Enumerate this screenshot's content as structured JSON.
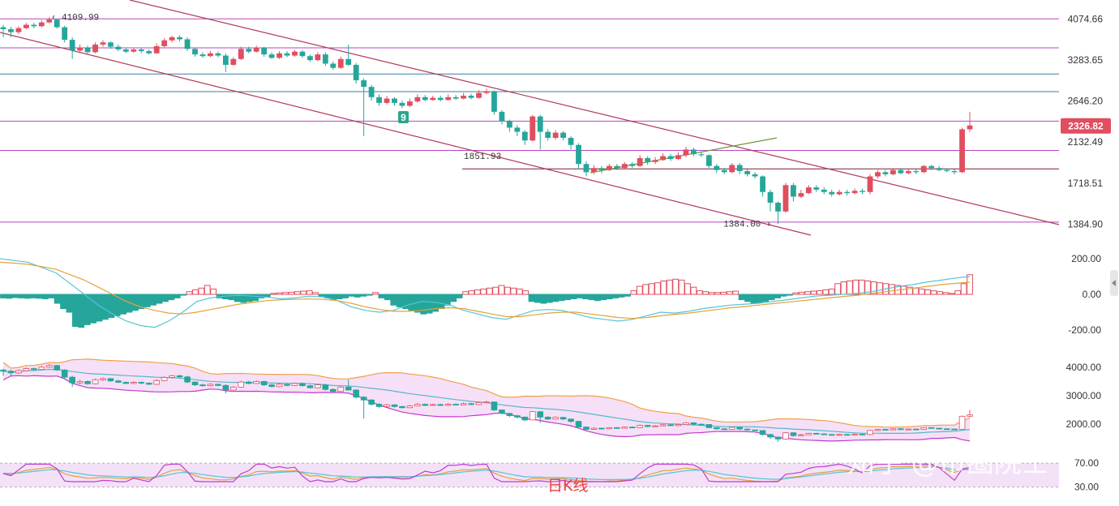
{
  "colors": {
    "up": "#e04e5f",
    "down": "#26a69a",
    "hline_purple": "#b845c4",
    "hline_teal": "#3e7f98",
    "channel": "#b03a5a",
    "trend_green": "#6b9a3a",
    "macd_fast": "#56c4d6",
    "macd_slow": "#e3a23c",
    "boll_upper": "#f0a04a",
    "boll_mid": "#56b8c8",
    "boll_lower": "#c23ad0",
    "boll_fill": "#f6e0f7",
    "tag_bg": "#e04e5f"
  },
  "chart_data": [
    {
      "type": "candlestick",
      "title": "",
      "y_ticks": [
        "4074.66",
        "3283.65",
        "2646.20",
        "2132.49",
        "1718.51",
        "1384.90"
      ],
      "y_scale": "log",
      "ylim": [
        1200,
        4500
      ],
      "current_price": "2326.82",
      "annotations": {
        "high_label": "4109.99",
        "low_label": "1384.00",
        "level_label": "1851.93",
        "marker": "9"
      },
      "horizontal_levels": [
        {
          "value": 4074.66,
          "color": "purple"
        },
        {
          "value": 3500,
          "color": "purple"
        },
        {
          "value": 3050,
          "color": "teal"
        },
        {
          "value": 2780,
          "color": "teal"
        },
        {
          "value": 2380,
          "color": "purple"
        },
        {
          "value": 2040,
          "color": "purple"
        },
        {
          "value": 1851.93,
          "color": "dark-red"
        },
        {
          "value": 1400,
          "color": "purple"
        }
      ],
      "candles": [
        [
          3900,
          3860,
          3950,
          3700
        ],
        [
          3860,
          3800,
          3910,
          3700
        ],
        [
          3800,
          3880,
          3920,
          3760
        ],
        [
          3880,
          3950,
          3990,
          3860
        ],
        [
          3950,
          3920,
          3990,
          3880
        ],
        [
          3920,
          4000,
          4050,
          3900
        ],
        [
          4000,
          4060,
          4109.99,
          3980
        ],
        [
          4060,
          3900,
          4080,
          3870
        ],
        [
          3900,
          3650,
          3930,
          3600
        ],
        [
          3650,
          3450,
          3700,
          3300
        ],
        [
          3450,
          3500,
          3560,
          3400
        ],
        [
          3500,
          3420,
          3540,
          3380
        ],
        [
          3420,
          3560,
          3600,
          3400
        ],
        [
          3560,
          3600,
          3640,
          3520
        ],
        [
          3600,
          3520,
          3620,
          3480
        ],
        [
          3520,
          3470,
          3560,
          3440
        ],
        [
          3470,
          3430,
          3500,
          3400
        ],
        [
          3430,
          3470,
          3510,
          3410
        ],
        [
          3470,
          3440,
          3500,
          3400
        ],
        [
          3440,
          3400,
          3470,
          3380
        ],
        [
          3400,
          3530,
          3580,
          3390
        ],
        [
          3530,
          3640,
          3680,
          3510
        ],
        [
          3640,
          3700,
          3730,
          3600
        ],
        [
          3700,
          3660,
          3740,
          3620
        ],
        [
          3660,
          3480,
          3700,
          3440
        ],
        [
          3480,
          3380,
          3500,
          3340
        ],
        [
          3380,
          3350,
          3420,
          3320
        ],
        [
          3350,
          3400,
          3440,
          3330
        ],
        [
          3400,
          3360,
          3430,
          3330
        ],
        [
          3360,
          3200,
          3400,
          3080
        ],
        [
          3200,
          3300,
          3330,
          3180
        ],
        [
          3300,
          3480,
          3520,
          3280
        ],
        [
          3480,
          3430,
          3520,
          3400
        ],
        [
          3430,
          3500,
          3540,
          3410
        ],
        [
          3500,
          3380,
          3520,
          3340
        ],
        [
          3380,
          3320,
          3420,
          3300
        ],
        [
          3320,
          3400,
          3440,
          3300
        ],
        [
          3400,
          3360,
          3440,
          3330
        ],
        [
          3360,
          3430,
          3460,
          3340
        ],
        [
          3430,
          3350,
          3460,
          3320
        ],
        [
          3350,
          3280,
          3380,
          3250
        ],
        [
          3280,
          3380,
          3420,
          3260
        ],
        [
          3380,
          3220,
          3420,
          3180
        ],
        [
          3220,
          3150,
          3260,
          3120
        ],
        [
          3150,
          3300,
          3340,
          3130
        ],
        [
          3300,
          3200,
          3560,
          3180
        ],
        [
          3200,
          2950,
          3230,
          2900
        ],
        [
          2950,
          2850,
          2980,
          2200
        ],
        [
          2850,
          2700,
          2880,
          2650
        ],
        [
          2700,
          2620,
          2740,
          2580
        ],
        [
          2620,
          2680,
          2720,
          2600
        ],
        [
          2680,
          2620,
          2700,
          2580
        ],
        [
          2620,
          2580,
          2650,
          2550
        ],
        [
          2580,
          2640,
          2680,
          2560
        ],
        [
          2640,
          2700,
          2740,
          2620
        ],
        [
          2700,
          2660,
          2730,
          2640
        ],
        [
          2660,
          2690,
          2720,
          2650
        ],
        [
          2690,
          2660,
          2720,
          2640
        ],
        [
          2660,
          2700,
          2740,
          2650
        ],
        [
          2700,
          2680,
          2730,
          2660
        ],
        [
          2680,
          2720,
          2760,
          2670
        ],
        [
          2720,
          2690,
          2750,
          2670
        ],
        [
          2690,
          2760,
          2800,
          2680
        ],
        [
          2760,
          2780,
          2820,
          2740
        ],
        [
          2780,
          2500,
          2800,
          2460
        ],
        [
          2500,
          2380,
          2520,
          2340
        ],
        [
          2380,
          2300,
          2400,
          2250
        ],
        [
          2300,
          2250,
          2330,
          2200
        ],
        [
          2250,
          2150,
          2270,
          2100
        ],
        [
          2150,
          2440,
          2460,
          2140
        ],
        [
          2440,
          2250,
          2460,
          2050
        ],
        [
          2250,
          2180,
          2280,
          2150
        ],
        [
          2180,
          2240,
          2270,
          2160
        ],
        [
          2240,
          2180,
          2260,
          2150
        ],
        [
          2180,
          2100,
          2200,
          2050
        ],
        [
          2100,
          1900,
          2120,
          1850
        ],
        [
          1900,
          1820,
          1930,
          1780
        ],
        [
          1820,
          1860,
          1890,
          1800
        ],
        [
          1860,
          1840,
          1880,
          1810
        ],
        [
          1840,
          1880,
          1900,
          1830
        ],
        [
          1880,
          1860,
          1900,
          1840
        ],
        [
          1860,
          1900,
          1920,
          1850
        ],
        [
          1900,
          1880,
          1920,
          1860
        ],
        [
          1880,
          1960,
          1990,
          1870
        ],
        [
          1960,
          1920,
          1980,
          1890
        ],
        [
          1920,
          1940,
          1970,
          1900
        ],
        [
          1940,
          1980,
          2010,
          1930
        ],
        [
          1980,
          1950,
          2000,
          1930
        ],
        [
          1950,
          1990,
          2020,
          1940
        ],
        [
          1990,
          2050,
          2080,
          1970
        ],
        [
          2050,
          2000,
          2070,
          1980
        ],
        [
          2000,
          1990,
          2030,
          1970
        ],
        [
          1990,
          1880,
          2000,
          1860
        ],
        [
          1880,
          1840,
          1900,
          1810
        ],
        [
          1840,
          1820,
          1860,
          1800
        ],
        [
          1820,
          1890,
          1910,
          1810
        ],
        [
          1890,
          1830,
          1910,
          1800
        ],
        [
          1830,
          1800,
          1850,
          1780
        ],
        [
          1800,
          1780,
          1820,
          1760
        ],
        [
          1780,
          1640,
          1790,
          1600
        ],
        [
          1640,
          1550,
          1660,
          1480
        ],
        [
          1550,
          1480,
          1560,
          1384
        ],
        [
          1480,
          1700,
          1720,
          1470
        ],
        [
          1700,
          1600,
          1720,
          1560
        ],
        [
          1600,
          1630,
          1660,
          1590
        ],
        [
          1630,
          1680,
          1700,
          1620
        ],
        [
          1680,
          1660,
          1700,
          1640
        ],
        [
          1660,
          1640,
          1680,
          1620
        ],
        [
          1640,
          1620,
          1660,
          1600
        ],
        [
          1620,
          1640,
          1660,
          1610
        ],
        [
          1640,
          1630,
          1660,
          1610
        ],
        [
          1630,
          1650,
          1670,
          1620
        ],
        [
          1650,
          1640,
          1670,
          1620
        ],
        [
          1640,
          1780,
          1800,
          1620
        ],
        [
          1780,
          1820,
          1840,
          1760
        ],
        [
          1820,
          1800,
          1840,
          1780
        ],
        [
          1800,
          1840,
          1860,
          1790
        ],
        [
          1840,
          1810,
          1860,
          1800
        ],
        [
          1810,
          1830,
          1850,
          1800
        ],
        [
          1830,
          1820,
          1850,
          1800
        ],
        [
          1820,
          1880,
          1890,
          1810
        ],
        [
          1880,
          1860,
          1890,
          1840
        ],
        [
          1860,
          1840,
          1880,
          1830
        ],
        [
          1840,
          1830,
          1860,
          1820
        ],
        [
          1830,
          1820,
          1850,
          1800
        ],
        [
          1820,
          2280,
          2300,
          1810
        ],
        [
          2280,
          2326.82,
          2500,
          2250
        ]
      ]
    },
    {
      "type": "macd",
      "y_ticks": [
        "200.00",
        "0.00",
        "-200.00"
      ],
      "ylim": [
        -230,
        230
      ],
      "histogram": [
        -20,
        -22,
        -18,
        -20,
        -22,
        -20,
        -22,
        -25,
        -20,
        -50,
        -80,
        -100,
        -180,
        -185,
        -170,
        -160,
        -150,
        -140,
        -130,
        -120,
        -110,
        -100,
        -90,
        -80,
        -70,
        -60,
        -50,
        -40,
        -30,
        -20,
        -5,
        15,
        25,
        35,
        50,
        30,
        -20,
        -25,
        -30,
        -40,
        -45,
        -40,
        -35,
        -20,
        -15,
        5,
        8,
        10,
        12,
        15,
        18,
        20,
        10,
        -10,
        -20,
        -30,
        -25,
        -20,
        -10,
        -15,
        -10,
        -5,
        10,
        -20,
        -30,
        -60,
        -70,
        -80,
        -90,
        -100,
        -110,
        -105,
        -95,
        -80,
        -60,
        -40,
        -20,
        15,
        20,
        25,
        30,
        35,
        40,
        50,
        40,
        35,
        30,
        20,
        -40,
        -45,
        -50,
        -45,
        -40,
        -35,
        -30,
        -25,
        -20,
        -25,
        -30,
        -35,
        -30,
        -25,
        -20,
        -15,
        -10,
        20,
        45,
        55,
        60,
        65,
        75,
        80,
        85,
        80,
        60,
        40,
        20,
        15,
        10,
        10,
        12,
        15,
        18,
        -30,
        -40,
        -50,
        -45,
        -40,
        -30,
        -20,
        -10,
        -5,
        8,
        12,
        15,
        18,
        20,
        25,
        30,
        60,
        70,
        75,
        80,
        80,
        75,
        70,
        65,
        60,
        55,
        50,
        45,
        40,
        35,
        30,
        25,
        20,
        15,
        10,
        5,
        20,
        60,
        110
      ],
      "fast": [
        200,
        190,
        180,
        150,
        120,
        60,
        0,
        -60,
        -110,
        -150,
        -175,
        -185,
        -150,
        -100,
        -40,
        -20,
        -10,
        -5,
        -10,
        -15,
        -25,
        -20,
        -10,
        -15,
        -35,
        -70,
        -90,
        -100,
        -90,
        -60,
        -40,
        -45,
        -60,
        -90,
        -110,
        -130,
        -140,
        -115,
        -90,
        -85,
        -90,
        -110,
        -130,
        -140,
        -150,
        -140,
        -120,
        -100,
        -105,
        -95,
        -80,
        -70,
        -60,
        -55,
        -50,
        -40,
        -30,
        -20,
        -10,
        -5,
        0,
        5,
        15,
        30,
        45,
        55,
        70,
        80,
        92,
        100
      ],
      "slow": [
        180,
        175,
        168,
        155,
        140,
        110,
        80,
        40,
        0,
        -40,
        -70,
        -90,
        -105,
        -110,
        -100,
        -85,
        -70,
        -55,
        -45,
        -35,
        -30,
        -28,
        -26,
        -28,
        -35,
        -50,
        -70,
        -85,
        -95,
        -95,
        -90,
        -80,
        -75,
        -80,
        -95,
        -110,
        -125,
        -125,
        -115,
        -105,
        -100,
        -100,
        -110,
        -120,
        -130,
        -135,
        -130,
        -120,
        -112,
        -105,
        -95,
        -85,
        -75,
        -68,
        -60,
        -52,
        -44,
        -36,
        -28,
        -20,
        -12,
        -5,
        5,
        15,
        25,
        35,
        45,
        55,
        62,
        68
      ]
    },
    {
      "type": "bollinger",
      "y_ticks": [
        "4000.00",
        "3000.00",
        "2000.00"
      ],
      "ylim": [
        1350,
        4450
      ]
    },
    {
      "type": "oscillator",
      "y_ticks": [
        "70.00",
        "30.00"
      ],
      "ylim": [
        20,
        85
      ],
      "band": [
        30,
        70
      ]
    }
  ],
  "overlay": {
    "subchart_label": "日K线",
    "watermark": "知乎 @币圈院士"
  }
}
